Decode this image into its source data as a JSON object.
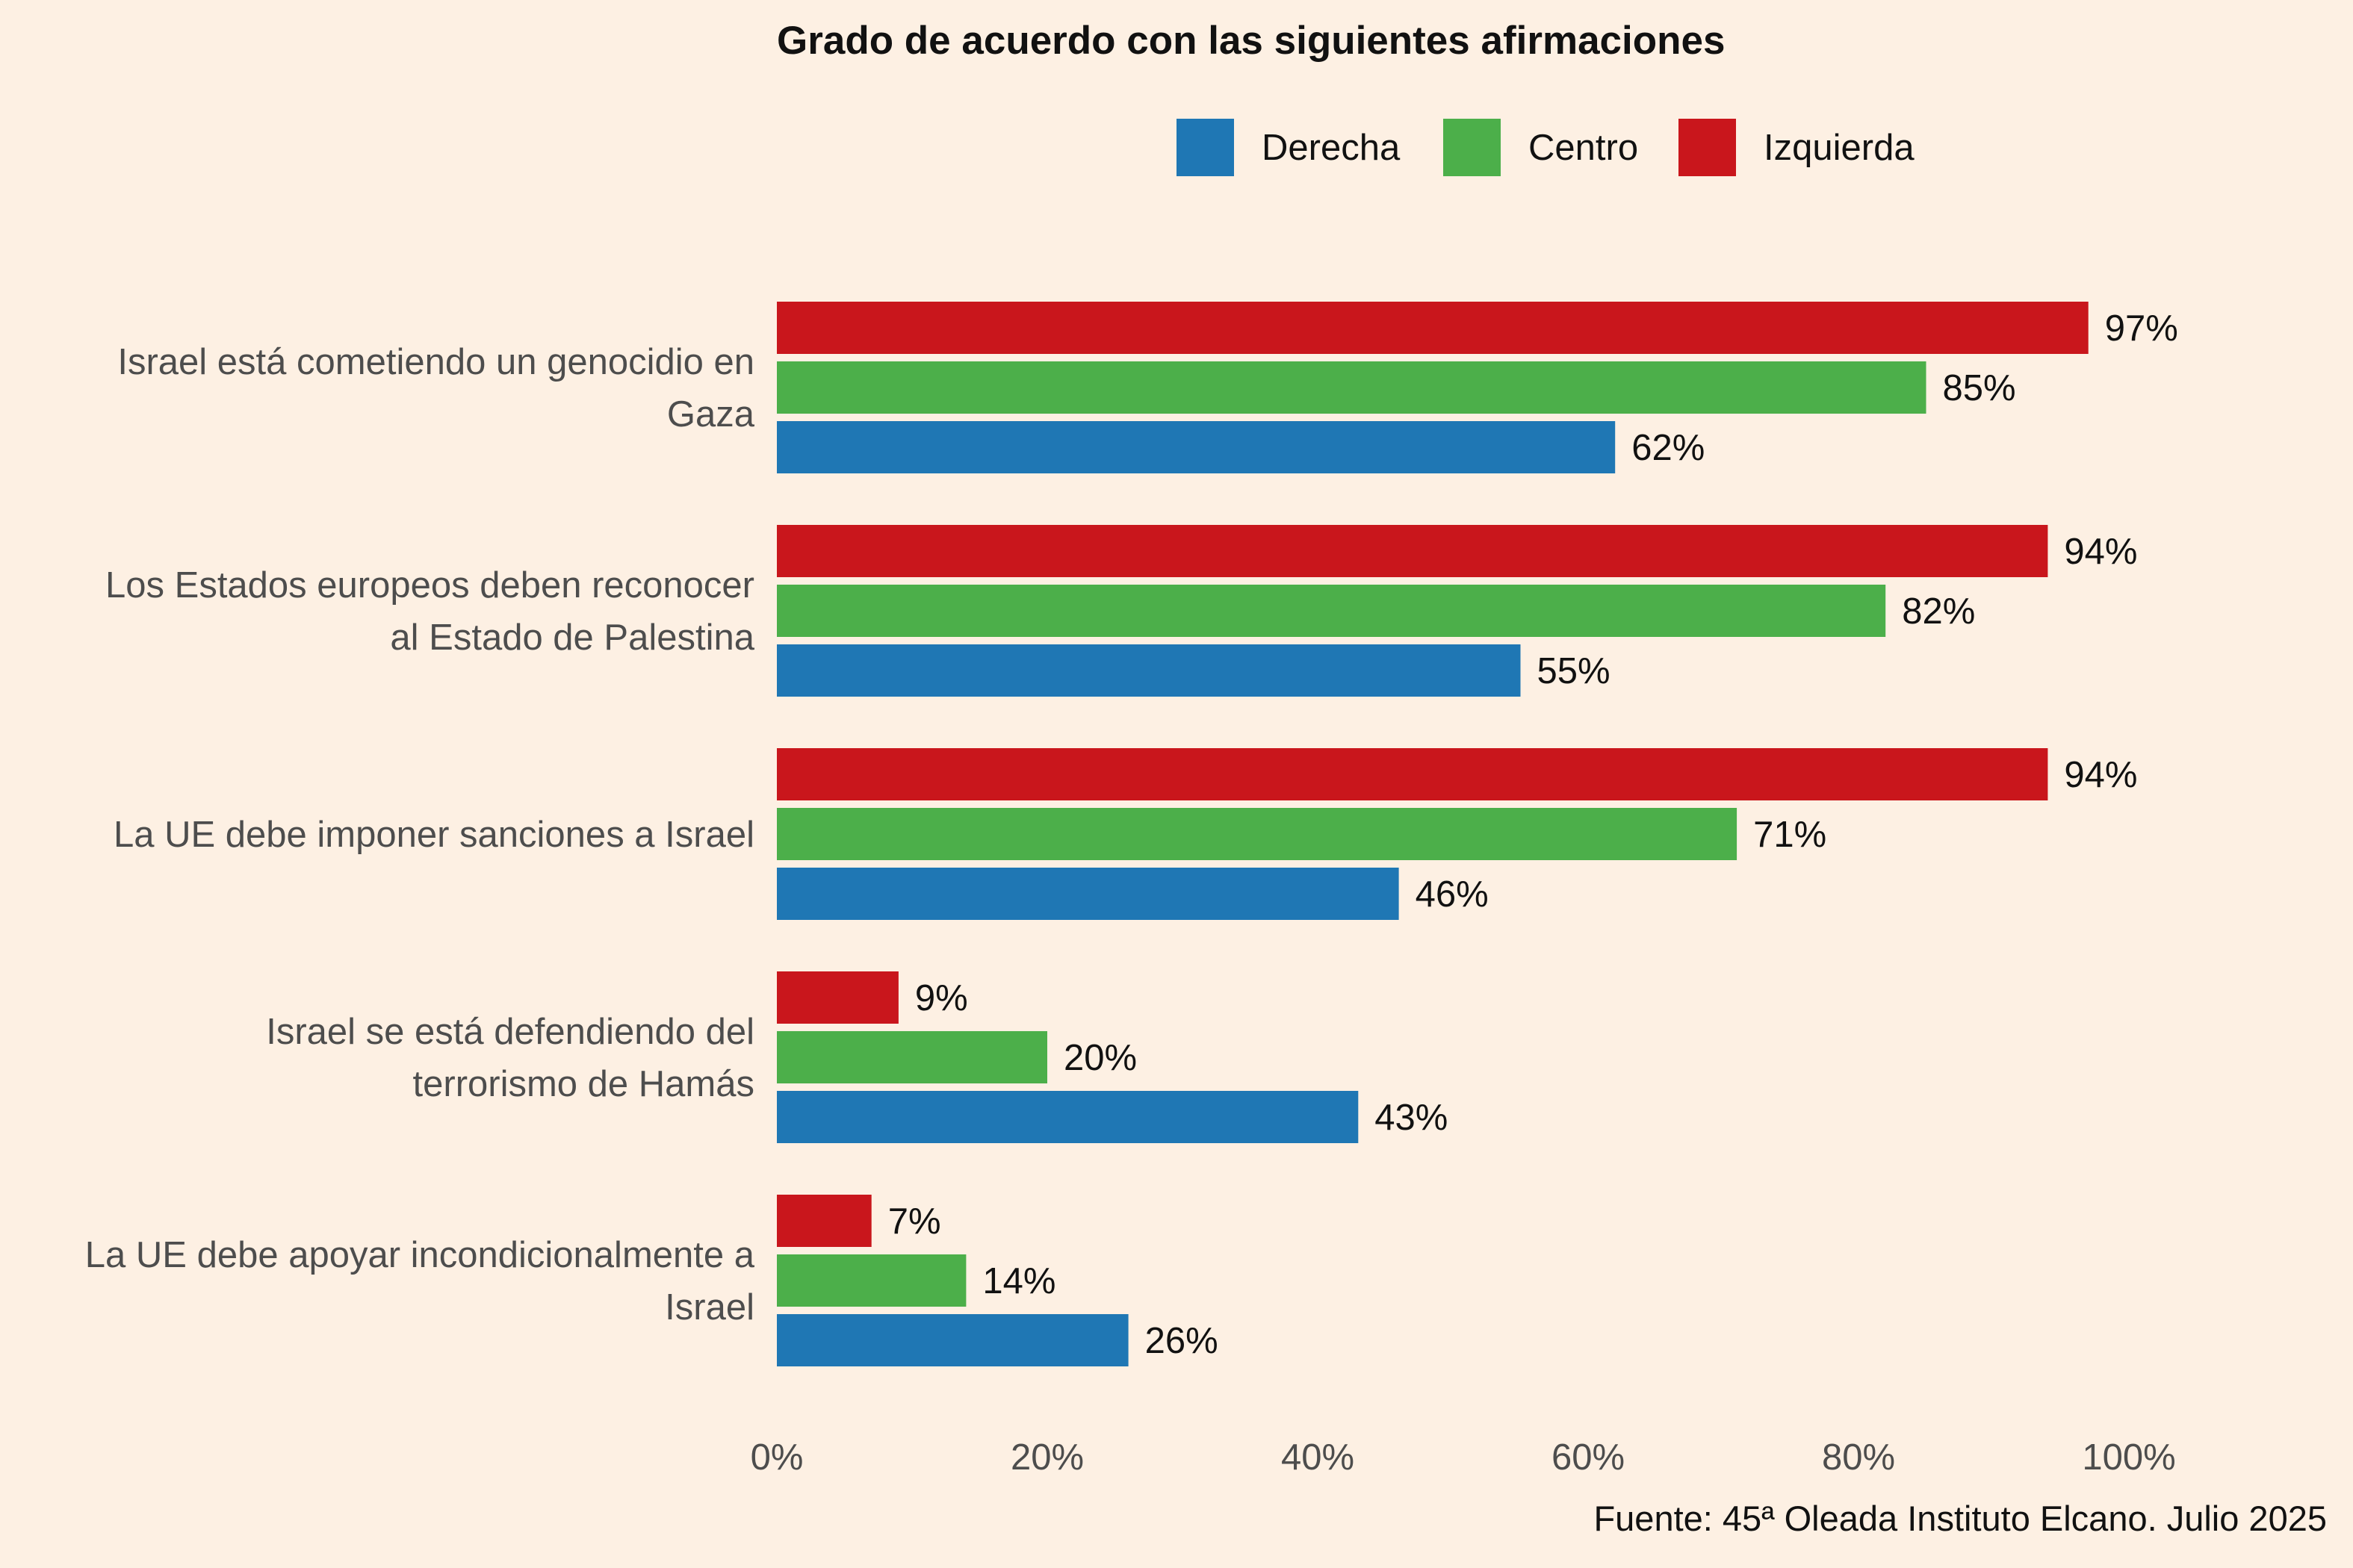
{
  "chart_data": {
    "type": "bar",
    "orientation": "horizontal",
    "title": "Grado de acuerdo con las siguientes afirmaciones",
    "categories": [
      [
        "Israel está cometiendo un genocidio en",
        "Gaza"
      ],
      [
        "Los Estados europeos deben reconocer",
        "al Estado de Palestina"
      ],
      [
        "La UE debe imponer sanciones a Israel"
      ],
      [
        "Israel se está defendiendo del",
        "terrorismo de Hamás"
      ],
      [
        "La UE debe apoyar incondicionalmente a",
        "Israel"
      ]
    ],
    "series": [
      {
        "name": "Izquierda",
        "color": "#c9161c",
        "values": [
          97,
          94,
          94,
          9,
          7
        ]
      },
      {
        "name": "Centro",
        "color": "#4caf4a",
        "values": [
          85,
          82,
          71,
          20,
          14
        ]
      },
      {
        "name": "Derecha",
        "color": "#1f77b4",
        "values": [
          62,
          55,
          46,
          43,
          26
        ]
      }
    ],
    "legend": {
      "placement": "top",
      "order": [
        "Derecha",
        "Centro",
        "Izquierda"
      ]
    },
    "xlim": [
      0,
      100
    ],
    "xticks": [
      0,
      20,
      40,
      60,
      80,
      100
    ],
    "tick_labels": [
      "0%",
      "20%",
      "40%",
      "60%",
      "80%",
      "100%"
    ],
    "value_suffix": "%",
    "xlabel": "",
    "ylabel": "",
    "grid": false,
    "source": "Fuente: 45ª Oleada Instituto Elcano. Julio 2025"
  }
}
